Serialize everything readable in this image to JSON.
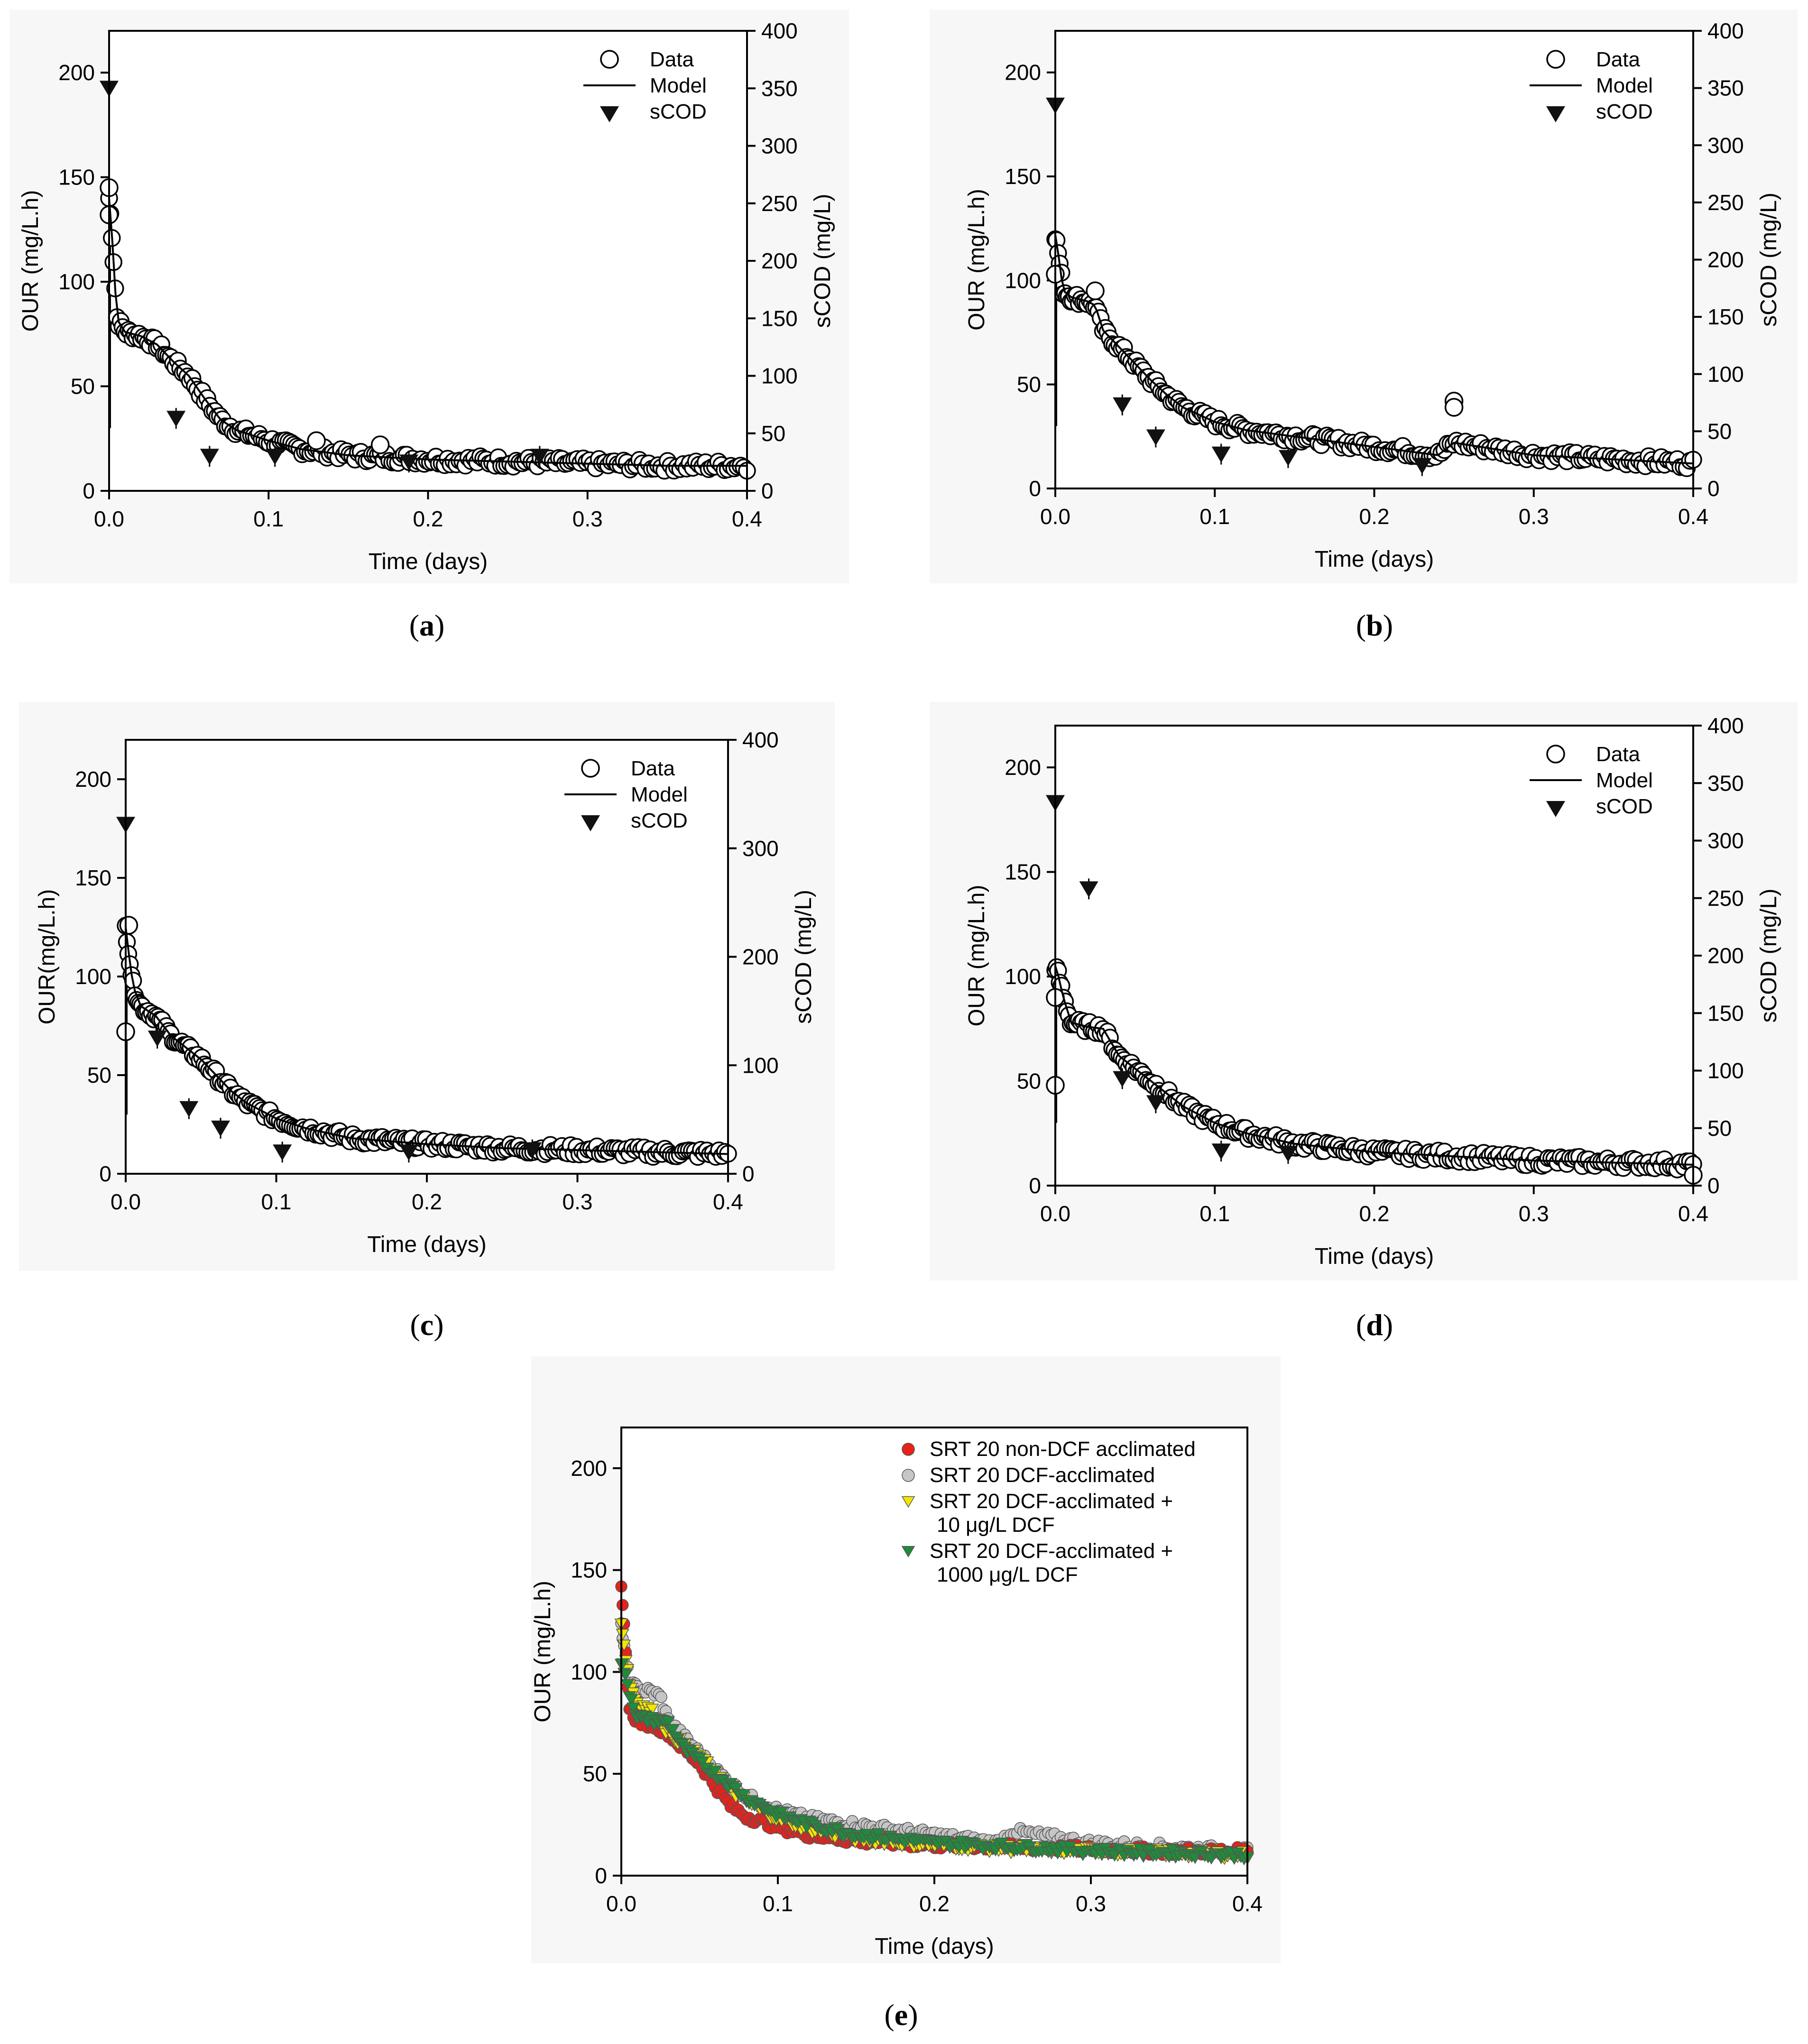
{
  "figure": {
    "caption_labels": [
      "a",
      "b",
      "c",
      "d",
      "e"
    ]
  },
  "chart_data": [
    {
      "id": "a",
      "type": "scatter",
      "caption": "a",
      "xlabel": "Time (days)",
      "ylabel": "OUR (mg/L.h)",
      "y2label": "sCOD (mg/L)",
      "xlim": [
        0,
        0.4
      ],
      "ylim": [
        0,
        220
      ],
      "y2lim": [
        0,
        400
      ],
      "xticks": [
        "0.0",
        "0.1",
        "0.2",
        "0.3",
        "0.4"
      ],
      "yticks": [
        "0",
        "50",
        "100",
        "150",
        "200"
      ],
      "y2ticks": [
        "0",
        "50",
        "100",
        "150",
        "200",
        "250",
        "300",
        "350",
        "400"
      ],
      "legend": [
        "Data",
        "Model",
        "sCOD"
      ],
      "legend_position": "top-right",
      "our_curve": {
        "x": [
          0,
          0.002,
          0.005,
          0.01,
          0.02,
          0.03,
          0.04,
          0.05,
          0.06,
          0.07,
          0.08,
          0.1,
          0.12,
          0.15,
          0.2,
          0.25,
          0.3,
          0.35,
          0.4
        ],
        "y": [
          140,
          120,
          82,
          76,
          74,
          70,
          62,
          55,
          44,
          34,
          29,
          24,
          20,
          17,
          15,
          14,
          13,
          12,
          12
        ]
      },
      "our_outliers": [
        {
          "x": 0.0,
          "y": 145
        },
        {
          "x": 0.0,
          "y": 132
        },
        {
          "x": 0.13,
          "y": 24
        },
        {
          "x": 0.17,
          "y": 22
        }
      ],
      "scod": {
        "x": [
          0.0,
          0.042,
          0.063,
          0.104,
          0.188,
          0.27
        ],
        "y": [
          350,
          63,
          30,
          30,
          25,
          30
        ]
      }
    },
    {
      "id": "b",
      "type": "scatter",
      "caption": "b",
      "xlabel": "Time (days)",
      "ylabel": "OUR (mg/L.h)",
      "y2label": "sCOD (mg/L)",
      "xlim": [
        0,
        0.4
      ],
      "ylim": [
        0,
        220
      ],
      "y2lim": [
        0,
        400
      ],
      "xticks": [
        "0.0",
        "0.1",
        "0.2",
        "0.3",
        "0.4"
      ],
      "yticks": [
        "0",
        "50",
        "100",
        "150",
        "200"
      ],
      "y2ticks": [
        "0",
        "50",
        "100",
        "150",
        "200",
        "250",
        "300",
        "350",
        "400"
      ],
      "legend": [
        "Data",
        "Model",
        "sCOD"
      ],
      "legend_position": "top-right",
      "our_curve": {
        "x": [
          0,
          0.002,
          0.005,
          0.01,
          0.02,
          0.025,
          0.03,
          0.04,
          0.05,
          0.06,
          0.07,
          0.08,
          0.1,
          0.12,
          0.15,
          0.2,
          0.24,
          0.25,
          0.3,
          0.35,
          0.4
        ],
        "y": [
          122,
          112,
          95,
          92,
          90,
          88,
          76,
          68,
          60,
          52,
          45,
          39,
          32,
          28,
          25,
          20,
          16,
          22,
          16,
          14,
          12
        ]
      },
      "our_outliers": [
        {
          "x": 0.0,
          "y": 103
        },
        {
          "x": 0.25,
          "y": 42
        },
        {
          "x": 0.25,
          "y": 39
        },
        {
          "x": 0.025,
          "y": 95
        }
      ],
      "scod": {
        "x": [
          0.0,
          0.042,
          0.063,
          0.104,
          0.146,
          0.23
        ],
        "y": [
          335,
          73,
          45,
          30,
          27,
          20
        ]
      }
    },
    {
      "id": "c",
      "type": "scatter",
      "caption": "c",
      "xlabel": "Time (days)",
      "ylabel": "OUR(mg/L.h)",
      "y2label": "sCOD (mg/L)",
      "xlim": [
        0,
        0.4
      ],
      "ylim": [
        0,
        220
      ],
      "y2lim": [
        0,
        400
      ],
      "xticks": [
        "0.0",
        "0.1",
        "0.2",
        "0.3",
        "0.4"
      ],
      "yticks": [
        "0",
        "50",
        "100",
        "150",
        "200"
      ],
      "y2ticks": [
        "0",
        "100",
        "200",
        "300",
        "400"
      ],
      "legend": [
        "Data",
        "Model",
        "sCOD"
      ],
      "legend_position": "top-right",
      "our_curve": {
        "x": [
          0,
          0.002,
          0.005,
          0.01,
          0.02,
          0.03,
          0.04,
          0.05,
          0.06,
          0.07,
          0.08,
          0.1,
          0.12,
          0.15,
          0.2,
          0.25,
          0.3,
          0.35,
          0.4
        ],
        "y": [
          125,
          112,
          95,
          85,
          80,
          70,
          64,
          58,
          50,
          42,
          36,
          28,
          23,
          18,
          15,
          13,
          12,
          11,
          10
        ]
      },
      "our_outliers": [
        {
          "x": 0.0,
          "y": 72
        },
        {
          "x": 0.002,
          "y": 126
        }
      ],
      "scod": {
        "x": [
          0.0,
          0.021,
          0.042,
          0.063,
          0.104,
          0.188,
          0.27
        ],
        "y": [
          322,
          125,
          60,
          42,
          20,
          20,
          22
        ]
      }
    },
    {
      "id": "d",
      "type": "scatter",
      "caption": "d",
      "xlabel": "Time (days)",
      "ylabel": "OUR (mg/L.h)",
      "y2label": "sCOD (mg/L)",
      "xlim": [
        0,
        0.4
      ],
      "ylim": [
        0,
        220
      ],
      "y2lim": [
        0,
        400
      ],
      "xticks": [
        "0.0",
        "0.1",
        "0.2",
        "0.3",
        "0.4"
      ],
      "yticks": [
        "0",
        "50",
        "100",
        "150",
        "200"
      ],
      "y2ticks": [
        "0",
        "50",
        "100",
        "150",
        "200",
        "250",
        "300",
        "350",
        "400"
      ],
      "legend": [
        "Data",
        "Model",
        "sCOD"
      ],
      "legend_position": "top-right",
      "our_curve": {
        "x": [
          0,
          0.002,
          0.005,
          0.01,
          0.02,
          0.03,
          0.04,
          0.05,
          0.06,
          0.07,
          0.08,
          0.1,
          0.12,
          0.15,
          0.2,
          0.25,
          0.3,
          0.35,
          0.4
        ],
        "y": [
          105,
          100,
          90,
          78,
          76,
          75,
          62,
          56,
          50,
          44,
          38,
          30,
          25,
          20,
          16,
          14,
          12,
          11,
          10
        ]
      },
      "our_outliers": [
        {
          "x": 0.0,
          "y": 48
        },
        {
          "x": 0.0,
          "y": 90
        },
        {
          "x": 0.4,
          "y": 5
        }
      ],
      "scod": {
        "x": [
          0.0,
          0.021,
          0.042,
          0.063,
          0.104,
          0.146
        ],
        "y": [
          333,
          258,
          93,
          72,
          30,
          28
        ]
      }
    },
    {
      "id": "e",
      "type": "scatter",
      "caption": "e",
      "xlabel": "Time (days)",
      "ylabel": "OUR (mg/L.h)",
      "xlim": [
        0,
        0.4
      ],
      "ylim": [
        0,
        220
      ],
      "xticks": [
        "0.0",
        "0.1",
        "0.2",
        "0.3",
        "0.4"
      ],
      "yticks": [
        "0",
        "50",
        "100",
        "150",
        "200"
      ],
      "legend_position": "top-right",
      "series": [
        {
          "name": "SRT 20 non-DCF acclimated",
          "color": "#e8211b",
          "marker": "circle",
          "x": [
            0,
            0.002,
            0.005,
            0.01,
            0.02,
            0.03,
            0.04,
            0.05,
            0.06,
            0.07,
            0.08,
            0.1,
            0.12,
            0.15,
            0.2,
            0.25,
            0.3,
            0.35,
            0.4
          ],
          "y": [
            140,
            120,
            82,
            76,
            74,
            70,
            62,
            55,
            44,
            34,
            29,
            24,
            20,
            17,
            15,
            14,
            13,
            12,
            12
          ]
        },
        {
          "name": "SRT 20 DCF-acclimated",
          "color": "#c6c6c6",
          "marker": "circle",
          "x": [
            0,
            0.002,
            0.005,
            0.01,
            0.02,
            0.025,
            0.03,
            0.04,
            0.05,
            0.06,
            0.07,
            0.08,
            0.1,
            0.12,
            0.15,
            0.2,
            0.24,
            0.25,
            0.3,
            0.35,
            0.4
          ],
          "y": [
            122,
            112,
            95,
            92,
            90,
            88,
            76,
            68,
            60,
            52,
            45,
            39,
            32,
            28,
            25,
            20,
            16,
            22,
            16,
            14,
            12
          ]
        },
        {
          "name": "SRT 20 DCF-acclimated +\n10 μg/L DCF",
          "label_line1": "SRT 20 DCF-acclimated +",
          "label_line2": "10 μg/L DCF",
          "color": "#f2e600",
          "marker": "triangle-down",
          "x": [
            0,
            0.002,
            0.005,
            0.01,
            0.02,
            0.03,
            0.04,
            0.05,
            0.06,
            0.07,
            0.08,
            0.1,
            0.12,
            0.15,
            0.2,
            0.25,
            0.3,
            0.35,
            0.4
          ],
          "y": [
            125,
            112,
            95,
            85,
            80,
            70,
            64,
            58,
            50,
            42,
            36,
            28,
            23,
            18,
            15,
            13,
            12,
            11,
            10
          ]
        },
        {
          "name": "SRT 20 DCF-acclimated +\n1000 μg/L DCF",
          "label_line1": "SRT 20 DCF-acclimated +",
          "label_line2": "1000 μg/L DCF",
          "color": "#1e8c3a",
          "marker": "triangle-down",
          "x": [
            0,
            0.002,
            0.005,
            0.01,
            0.02,
            0.03,
            0.04,
            0.05,
            0.06,
            0.07,
            0.08,
            0.1,
            0.12,
            0.15,
            0.2,
            0.25,
            0.3,
            0.35,
            0.4
          ],
          "y": [
            105,
            100,
            90,
            78,
            76,
            75,
            62,
            56,
            50,
            44,
            38,
            30,
            25,
            20,
            16,
            14,
            12,
            11,
            10
          ]
        }
      ]
    }
  ]
}
